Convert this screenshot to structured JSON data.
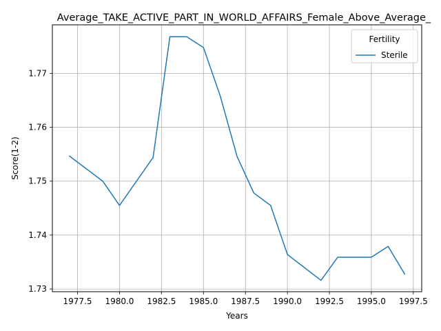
{
  "chart_data": {
    "type": "line",
    "title": "Average_TAKE_ACTIVE_PART_IN_WORLD_AFFAIRS_Female_Above_Average_",
    "xlabel": "Years",
    "ylabel": "Score(1-2)",
    "xlim": [
      1976.0,
      1998.0
    ],
    "ylim": [
      1.7295,
      1.779
    ],
    "grid": true,
    "x_ticks": [
      1977.5,
      1980.0,
      1982.5,
      1985.0,
      1987.5,
      1990.0,
      1992.5,
      1995.0,
      1997.5
    ],
    "x_tick_labels": [
      "1977.5",
      "1980.0",
      "1982.5",
      "1985.0",
      "1987.5",
      "1990.0",
      "1992.5",
      "1995.0",
      "1997.5"
    ],
    "y_ticks": [
      1.73,
      1.74,
      1.75,
      1.76,
      1.77
    ],
    "y_tick_labels": [
      "1.73",
      "1.74",
      "1.75",
      "1.76",
      "1.77"
    ],
    "legend": {
      "title": "Fertility",
      "placement": "top-right"
    },
    "series": [
      {
        "name": "Sterile",
        "color": "#1f77b4",
        "x": [
          1977,
          1979,
          1980,
          1982,
          1983,
          1984,
          1985,
          1986,
          1987,
          1988,
          1989,
          1990,
          1992,
          1993,
          1995,
          1996,
          1997
        ],
        "y": [
          1.7547,
          1.75,
          1.7455,
          1.7544,
          1.7768,
          1.7768,
          1.7748,
          1.7658,
          1.7546,
          1.7478,
          1.7455,
          1.7364,
          1.7316,
          1.7359,
          1.7359,
          1.7379,
          1.7327
        ]
      }
    ]
  }
}
